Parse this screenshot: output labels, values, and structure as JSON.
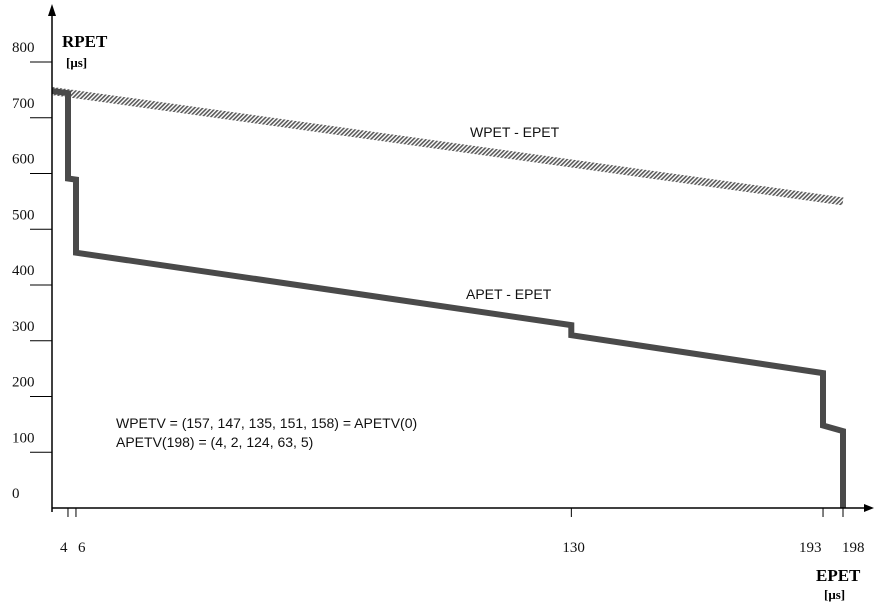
{
  "chart_data": {
    "type": "line",
    "ylabel": "RPET",
    "yunit": "[μs]",
    "xlabel": "EPET",
    "xunit": "[μs]",
    "xlim": [
      0,
      198
    ],
    "ylim": [
      0,
      800
    ],
    "x_ticks": [
      4,
      6,
      130,
      193,
      198
    ],
    "y_ticks": [
      0,
      100,
      200,
      300,
      400,
      500,
      600,
      700,
      800
    ],
    "grid": false,
    "series": [
      {
        "name": "WPET - EPET",
        "style": "hatched",
        "points": [
          [
            0,
            748
          ],
          [
            198,
            550
          ]
        ]
      },
      {
        "name": "APET - EPET",
        "style": "solid",
        "points": [
          [
            0,
            748
          ],
          [
            4,
            744
          ],
          [
            4,
            591
          ],
          [
            6,
            589
          ],
          [
            6,
            458
          ],
          [
            130,
            328
          ],
          [
            130,
            310
          ],
          [
            193,
            242
          ],
          [
            193,
            148
          ],
          [
            198,
            138
          ],
          [
            198,
            0
          ]
        ]
      }
    ],
    "annotations": [
      "WPETV = (157, 147, 135, 151, 158) = APETV(0)",
      "APETV(198) = (4, 2, 124, 63, 5)"
    ],
    "colors": {
      "axis": "#000000",
      "apet": "#4a4a4a",
      "wpet_stripe": "#5a5a5a",
      "wpet_bg": "#ffffff"
    }
  }
}
